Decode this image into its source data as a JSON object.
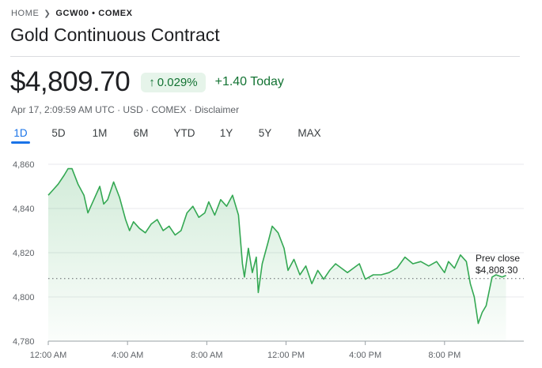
{
  "breadcrumb": {
    "home": "HOME",
    "ticker": "GCW00 • COMEX"
  },
  "title": "Gold Continuous Contract",
  "price": {
    "value": "$4,809.70",
    "change_percent": "0.029%",
    "change_today": "+1.40 Today",
    "meta": "Apr 17, 2:09:59 AM UTC · USD · COMEX · ",
    "disclaimer": "Disclaimer"
  },
  "tabs": [
    {
      "label": "1D",
      "active": true
    },
    {
      "label": "5D"
    },
    {
      "label": "1M"
    },
    {
      "label": "6M"
    },
    {
      "label": "YTD"
    },
    {
      "label": "1Y"
    },
    {
      "label": "5Y"
    },
    {
      "label": "MAX"
    }
  ],
  "colors": {
    "line": "#34a853",
    "fill": "#34a853",
    "gain_text": "#137333",
    "badge_bg": "#e6f4ea",
    "active_tab": "#1a73e8"
  },
  "chart_data": {
    "type": "area",
    "x_tick_labels": [
      "12:00 AM",
      "4:00 AM",
      "8:00 AM",
      "12:00 PM",
      "4:00 PM",
      "8:00 PM"
    ],
    "y_tick_labels": [
      "4,860",
      "4,840",
      "4,820",
      "4,800",
      "4,780"
    ],
    "x_domain_hours": [
      0,
      24
    ],
    "ylim": [
      4780,
      4860
    ],
    "grid": true,
    "prev_close": {
      "label": "Prev close",
      "value_label": "$4,808.30",
      "value": 4808.3
    },
    "series": [
      {
        "x": [
          0,
          0.2,
          0.5,
          0.8,
          1.0,
          1.2,
          1.5,
          1.8,
          2.0,
          2.3,
          2.6,
          2.8,
          3.0,
          3.3,
          3.6,
          3.9,
          4.1,
          4.3,
          4.6,
          4.9,
          5.2,
          5.5,
          5.8,
          6.1,
          6.4,
          6.7,
          7.0,
          7.3,
          7.6,
          7.9,
          8.1,
          8.4,
          8.7,
          9.0,
          9.3,
          9.6,
          9.8,
          9.9,
          10.1,
          10.3,
          10.5,
          10.6,
          10.8,
          11.1,
          11.3,
          11.6,
          11.9,
          12.1,
          12.4,
          12.7,
          13.0,
          13.3,
          13.6,
          13.9,
          14.2,
          14.5,
          14.8,
          15.1,
          15.4,
          15.7,
          16.0,
          16.4,
          16.8,
          17.2,
          17.6,
          18.0,
          18.4,
          18.8,
          19.2,
          19.6,
          20.0,
          20.2,
          20.5,
          20.8,
          21.1,
          21.3,
          21.5,
          21.7,
          21.9,
          22.1,
          22.4,
          22.6,
          22.9,
          23.1
        ],
        "y": [
          4846,
          4848,
          4851,
          4855,
          4858,
          4858,
          4851,
          4846,
          4838,
          4844,
          4850,
          4842,
          4844,
          4852,
          4845,
          4835,
          4830,
          4834,
          4831,
          4829,
          4833,
          4835,
          4830,
          4832,
          4828,
          4830,
          4838,
          4841,
          4836,
          4838,
          4843,
          4837,
          4844,
          4841,
          4846,
          4837,
          4815,
          4809,
          4822,
          4811,
          4818,
          4802,
          4815,
          4825,
          4832,
          4829,
          4822,
          4812,
          4817,
          4810,
          4814,
          4806,
          4812,
          4808,
          4812,
          4815,
          4813,
          4811,
          4813,
          4815,
          4808,
          4810,
          4810,
          4811,
          4813,
          4818,
          4815,
          4816,
          4814,
          4816,
          4811,
          4816,
          4813,
          4819,
          4816,
          4806,
          4800,
          4788,
          4793,
          4796,
          4809,
          4810,
          4809,
          4809.7
        ]
      }
    ]
  }
}
